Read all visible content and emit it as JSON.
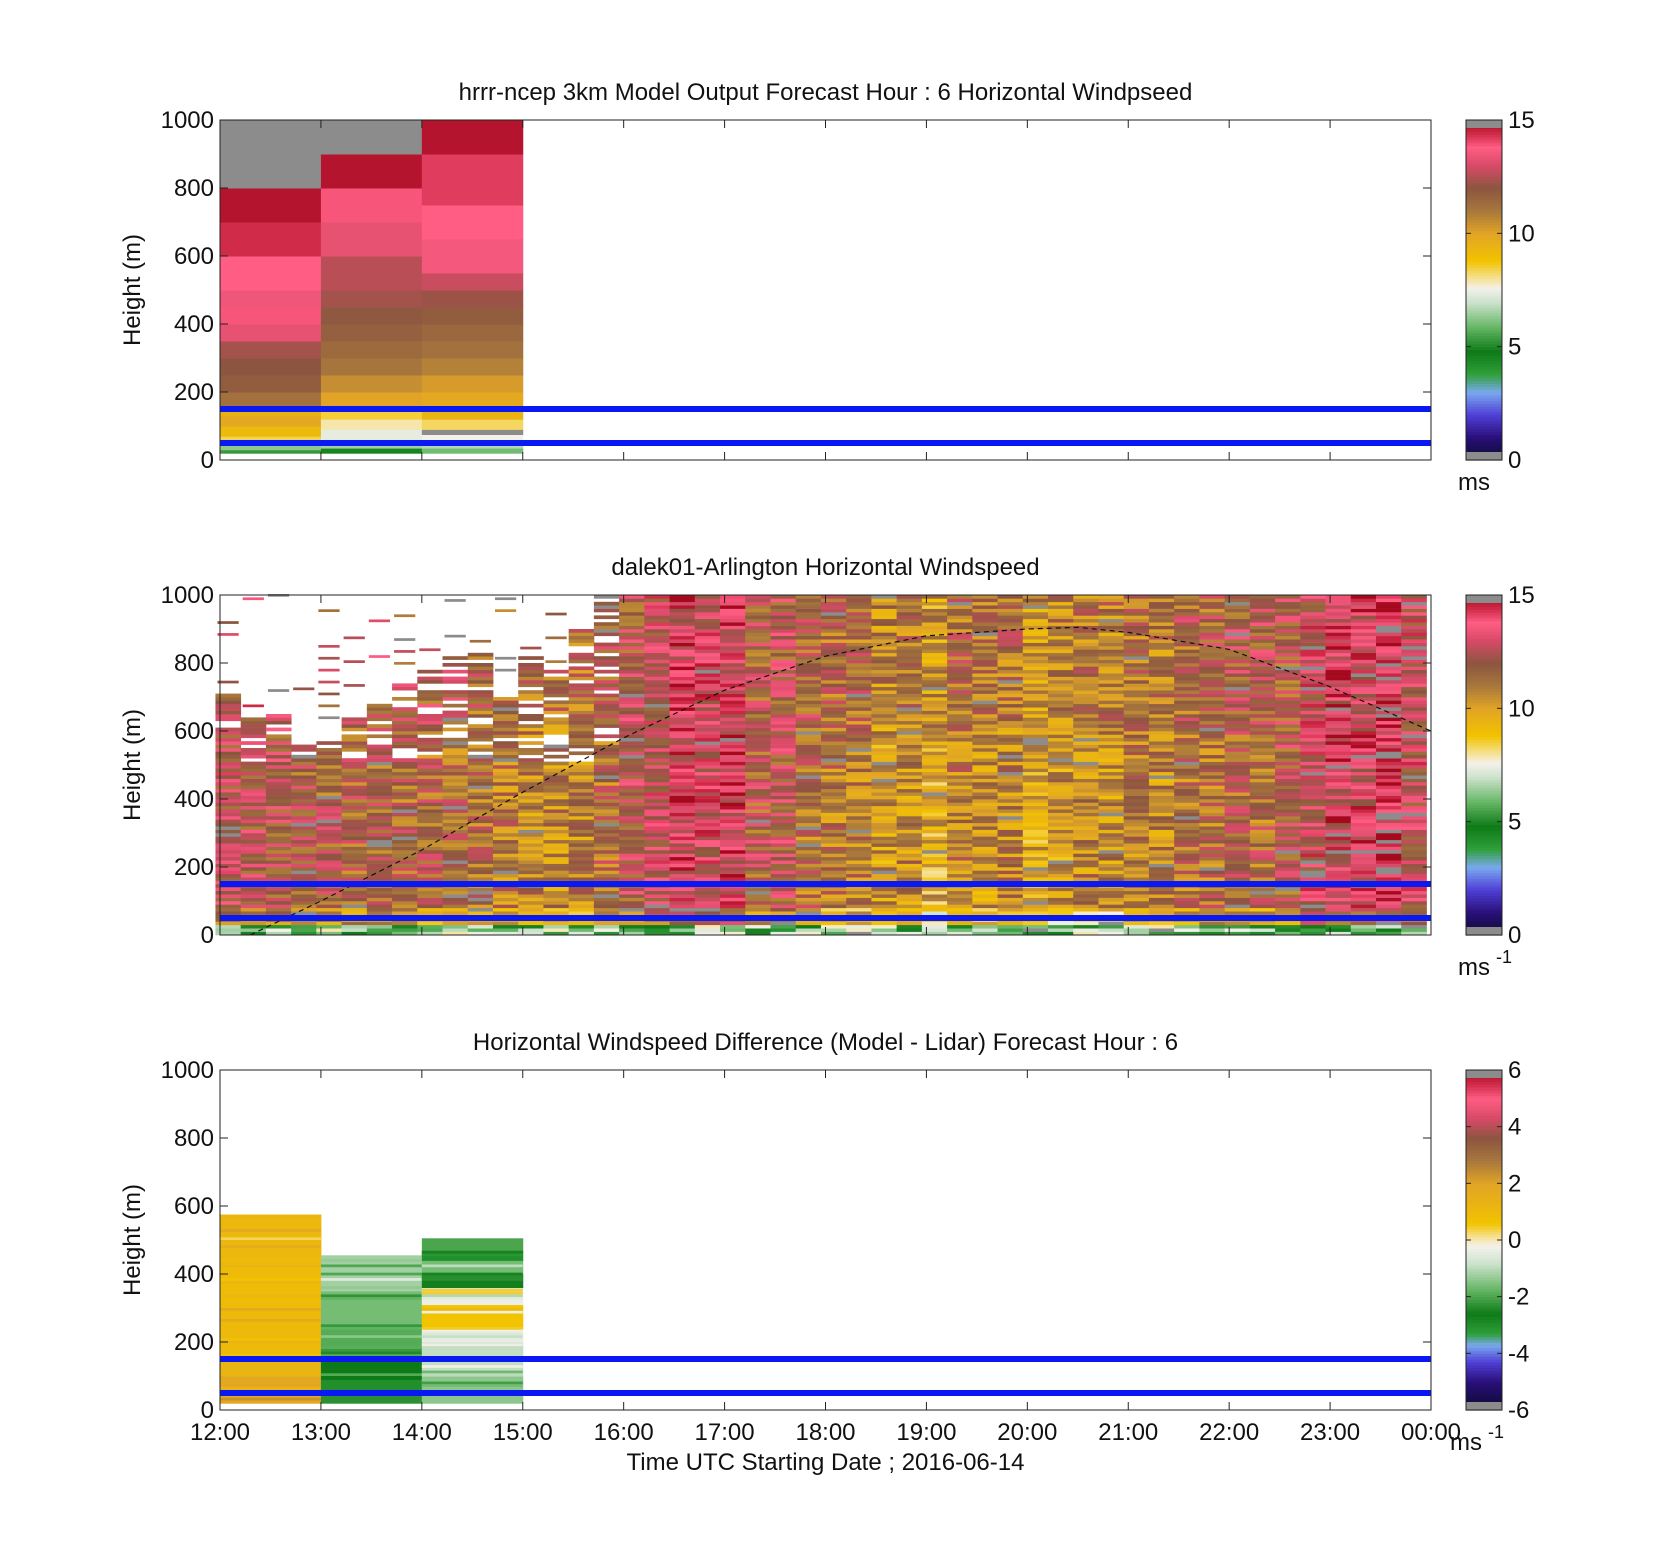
{
  "figure": {
    "x_tick_labels": [
      "12:00",
      "13:00",
      "14:00",
      "15:00",
      "16:00",
      "17:00",
      "18:00",
      "19:00",
      "20:00",
      "21:00",
      "22:00",
      "23:00",
      "00:00"
    ],
    "xlabel": "Time UTC  Starting Date ; 2016-06-14"
  },
  "chart_data": [
    {
      "type": "heatmap",
      "title": "hrrr-ncep 3km Model Output   Forecast Hour : 6 Horizontal Windpseed",
      "xlabel": "",
      "ylabel": "Height (m)",
      "xlim_hours": [
        12,
        24
      ],
      "ylim": [
        0,
        1000
      ],
      "y_ticks": [
        0,
        200,
        400,
        600,
        800,
        1000
      ],
      "colorbar": {
        "ticks": [
          0,
          5,
          10,
          15
        ],
        "label": "ms",
        "label_sup": "",
        "range": [
          0,
          15
        ]
      },
      "reference_lines_m": [
        50,
        150
      ],
      "reference_line_color": "#0a18f2",
      "columns": [
        {
          "start_hour": 12,
          "end_hour": 13,
          "cells": [
            {
              "from": 20,
              "to": 30,
              "v": 5.3
            },
            {
              "from": 30,
              "to": 45,
              "v": 6.3
            },
            {
              "from": 45,
              "to": 70,
              "v": 8.4
            },
            {
              "from": 70,
              "to": 100,
              "v": 9.2
            },
            {
              "from": 100,
              "to": 130,
              "v": 9.8
            },
            {
              "from": 130,
              "to": 150,
              "v": 9.5
            },
            {
              "from": 150,
              "to": 200,
              "v": 11.2
            },
            {
              "from": 200,
              "to": 250,
              "v": 11.8
            },
            {
              "from": 250,
              "to": 300,
              "v": 12.0
            },
            {
              "from": 300,
              "to": 350,
              "v": 12.3
            },
            {
              "from": 350,
              "to": 400,
              "v": 13.3
            },
            {
              "from": 400,
              "to": 450,
              "v": 13.9
            },
            {
              "from": 450,
              "to": 500,
              "v": 13.5
            },
            {
              "from": 500,
              "to": 600,
              "v": 13.8
            },
            {
              "from": 600,
              "to": 700,
              "v": 14.4
            },
            {
              "from": 700,
              "to": 800,
              "v": 14.8
            },
            {
              "from": 800,
              "to": 1000,
              "v": 16.0
            }
          ]
        },
        {
          "start_hour": 13,
          "end_hour": 14,
          "cells": [
            {
              "from": 20,
              "to": 35,
              "v": 4.5
            },
            {
              "from": 35,
              "to": 60,
              "v": 6.5
            },
            {
              "from": 60,
              "to": 90,
              "v": 7.4
            },
            {
              "from": 90,
              "to": 120,
              "v": 7.9
            },
            {
              "from": 120,
              "to": 150,
              "v": 8.5
            },
            {
              "from": 150,
              "to": 200,
              "v": 10.0
            },
            {
              "from": 200,
              "to": 250,
              "v": 10.5
            },
            {
              "from": 250,
              "to": 300,
              "v": 11.1
            },
            {
              "from": 300,
              "to": 350,
              "v": 11.4
            },
            {
              "from": 350,
              "to": 400,
              "v": 11.7
            },
            {
              "from": 400,
              "to": 450,
              "v": 11.9
            },
            {
              "from": 450,
              "to": 500,
              "v": 12.3
            },
            {
              "from": 500,
              "to": 600,
              "v": 12.6
            },
            {
              "from": 600,
              "to": 700,
              "v": 13.3
            },
            {
              "from": 700,
              "to": 800,
              "v": 13.9
            },
            {
              "from": 800,
              "to": 900,
              "v": 14.8
            },
            {
              "from": 900,
              "to": 1000,
              "v": 16.0
            }
          ]
        },
        {
          "start_hour": 14,
          "end_hour": 15,
          "cells": [
            {
              "from": 20,
              "to": 35,
              "v": 6.0
            },
            {
              "from": 35,
              "to": 60,
              "v": 6.7
            },
            {
              "from": 60,
              "to": 75,
              "v": 7.6
            },
            {
              "from": 75,
              "to": 90,
              "v": 16.0
            },
            {
              "from": 90,
              "to": 120,
              "v": 8.3
            },
            {
              "from": 120,
              "to": 150,
              "v": 9.4
            },
            {
              "from": 150,
              "to": 200,
              "v": 9.8
            },
            {
              "from": 200,
              "to": 250,
              "v": 10.2
            },
            {
              "from": 250,
              "to": 300,
              "v": 10.8
            },
            {
              "from": 300,
              "to": 350,
              "v": 11.2
            },
            {
              "from": 350,
              "to": 400,
              "v": 11.5
            },
            {
              "from": 400,
              "to": 450,
              "v": 11.8
            },
            {
              "from": 450,
              "to": 500,
              "v": 12.2
            },
            {
              "from": 500,
              "to": 550,
              "v": 12.8
            },
            {
              "from": 550,
              "to": 650,
              "v": 13.6
            },
            {
              "from": 650,
              "to": 750,
              "v": 13.8
            },
            {
              "from": 750,
              "to": 900,
              "v": 14.2
            },
            {
              "from": 900,
              "to": 1000,
              "v": 14.8
            }
          ]
        }
      ]
    },
    {
      "type": "heatmap",
      "title": "dalek01-Arlington  Horizontal Windspeed",
      "xlabel": "",
      "ylabel": "Height (m)",
      "xlim_hours": [
        12,
        24
      ],
      "ylim": [
        0,
        1000
      ],
      "y_ticks": [
        0,
        200,
        400,
        600,
        800,
        1000
      ],
      "colorbar": {
        "ticks": [
          0,
          5,
          10,
          15
        ],
        "label": "ms",
        "label_sup": "-1",
        "range": [
          0,
          15
        ]
      },
      "reference_lines_m": [
        50,
        150
      ],
      "reference_line_color": "#0a18f2",
      "boundary_layer_curve": {
        "style": "dashed",
        "points_hour_m": [
          [
            12.3,
            0
          ],
          [
            13,
            100
          ],
          [
            14,
            250
          ],
          [
            15,
            420
          ],
          [
            16,
            580
          ],
          [
            17,
            720
          ],
          [
            18,
            820
          ],
          [
            19,
            880
          ],
          [
            20,
            900
          ],
          [
            20.5,
            905
          ],
          [
            21,
            890
          ],
          [
            22,
            840
          ],
          [
            23,
            730
          ],
          [
            24,
            600
          ]
        ]
      },
      "profile_columns": [
        {
          "hour": 12.08,
          "top_m": 720,
          "mean_ms": 12.6
        },
        {
          "hour": 12.33,
          "top_m": 650,
          "mean_ms": 12.4
        },
        {
          "hour": 12.58,
          "top_m": 660,
          "mean_ms": 12.3
        },
        {
          "hour": 12.83,
          "top_m": 560,
          "mean_ms": 12.0
        },
        {
          "hour": 13.08,
          "top_m": 580,
          "mean_ms": 11.9
        },
        {
          "hour": 13.33,
          "top_m": 640,
          "mean_ms": 11.8
        },
        {
          "hour": 13.58,
          "top_m": 690,
          "mean_ms": 11.8
        },
        {
          "hour": 13.83,
          "top_m": 740,
          "mean_ms": 11.7
        },
        {
          "hour": 14.08,
          "top_m": 780,
          "mean_ms": 11.6
        },
        {
          "hour": 14.33,
          "top_m": 820,
          "mean_ms": 11.4
        },
        {
          "hour": 14.58,
          "top_m": 840,
          "mean_ms": 11.2
        },
        {
          "hour": 14.83,
          "top_m": 720,
          "mean_ms": 11.0
        },
        {
          "hour": 15.08,
          "top_m": 820,
          "mean_ms": 10.8
        },
        {
          "hour": 15.33,
          "top_m": 780,
          "mean_ms": 10.7
        },
        {
          "hour": 15.58,
          "top_m": 900,
          "mean_ms": 10.7
        },
        {
          "hour": 15.83,
          "top_m": 1000,
          "mean_ms": 11.5
        },
        {
          "hour": 16.08,
          "top_m": 1000,
          "mean_ms": 12.2
        },
        {
          "hour": 16.33,
          "top_m": 1000,
          "mean_ms": 12.8
        },
        {
          "hour": 16.58,
          "top_m": 1000,
          "mean_ms": 13.6
        },
        {
          "hour": 16.83,
          "top_m": 1000,
          "mean_ms": 13.2
        },
        {
          "hour": 17.08,
          "top_m": 1000,
          "mean_ms": 13.7
        },
        {
          "hour": 17.33,
          "top_m": 1000,
          "mean_ms": 12.0
        },
        {
          "hour": 17.58,
          "top_m": 1000,
          "mean_ms": 12.3
        },
        {
          "hour": 17.83,
          "top_m": 1000,
          "mean_ms": 11.4
        },
        {
          "hour": 18.08,
          "top_m": 1000,
          "mean_ms": 11.0
        },
        {
          "hour": 18.33,
          "top_m": 1000,
          "mean_ms": 11.0
        },
        {
          "hour": 18.58,
          "top_m": 1000,
          "mean_ms": 10.2
        },
        {
          "hour": 18.83,
          "top_m": 1000,
          "mean_ms": 10.6
        },
        {
          "hour": 19.08,
          "top_m": 1000,
          "mean_ms": 9.6
        },
        {
          "hour": 19.33,
          "top_m": 1000,
          "mean_ms": 11.0
        },
        {
          "hour": 19.58,
          "top_m": 1000,
          "mean_ms": 10.4
        },
        {
          "hour": 19.83,
          "top_m": 1000,
          "mean_ms": 10.8
        },
        {
          "hour": 20.08,
          "top_m": 1000,
          "mean_ms": 9.8
        },
        {
          "hour": 20.33,
          "top_m": 1000,
          "mean_ms": 10.2
        },
        {
          "hour": 20.58,
          "top_m": 1000,
          "mean_ms": 10.7
        },
        {
          "hour": 20.83,
          "top_m": 1000,
          "mean_ms": 10.5
        },
        {
          "hour": 21.08,
          "top_m": 1000,
          "mean_ms": 10.9
        },
        {
          "hour": 21.33,
          "top_m": 1000,
          "mean_ms": 10.6
        },
        {
          "hour": 21.58,
          "top_m": 1000,
          "mean_ms": 11.2
        },
        {
          "hour": 21.83,
          "top_m": 1000,
          "mean_ms": 11.3
        },
        {
          "hour": 22.08,
          "top_m": 1000,
          "mean_ms": 11.6
        },
        {
          "hour": 22.33,
          "top_m": 1000,
          "mean_ms": 11.6
        },
        {
          "hour": 22.58,
          "top_m": 1000,
          "mean_ms": 12.0
        },
        {
          "hour": 22.83,
          "top_m": 1000,
          "mean_ms": 13.0
        },
        {
          "hour": 23.08,
          "top_m": 1000,
          "mean_ms": 13.6
        },
        {
          "hour": 23.33,
          "top_m": 1000,
          "mean_ms": 13.5
        },
        {
          "hour": 23.58,
          "top_m": 1000,
          "mean_ms": 14.2
        },
        {
          "hour": 23.83,
          "top_m": 1000,
          "mean_ms": 12.9
        }
      ]
    },
    {
      "type": "heatmap",
      "title": "Horizontal Windspeed Difference (Model - Lidar) Forecast Hour : 6",
      "xlabel": "Time UTC  Starting Date ; 2016-06-14",
      "ylabel": "Height (m)",
      "xlim_hours": [
        12,
        24
      ],
      "ylim": [
        0,
        1000
      ],
      "y_ticks": [
        0,
        200,
        400,
        600,
        800,
        1000
      ],
      "colorbar": {
        "ticks": [
          -6,
          -4,
          -2,
          0,
          2,
          4,
          6
        ],
        "label": "ms",
        "label_sup": "-1",
        "range": [
          -6,
          6
        ]
      },
      "reference_lines_m": [
        50,
        150
      ],
      "reference_line_color": "#0a18f2",
      "columns": [
        {
          "start_hour": 12,
          "end_hour": 13,
          "cells": [
            {
              "from": 20,
              "to": 100,
              "v": 1.8
            },
            {
              "from": 100,
              "to": 150,
              "v": 1.3
            },
            {
              "from": 150,
              "to": 300,
              "v": 1.0
            },
            {
              "from": 300,
              "to": 450,
              "v": 0.9
            },
            {
              "from": 450,
              "to": 575,
              "v": 1.1
            }
          ]
        },
        {
          "start_hour": 13,
          "end_hour": 14,
          "cells": [
            {
              "from": 20,
              "to": 60,
              "v": -2.3
            },
            {
              "from": 60,
              "to": 90,
              "v": -3.0
            },
            {
              "from": 90,
              "to": 150,
              "v": -2.6
            },
            {
              "from": 150,
              "to": 250,
              "v": -1.9
            },
            {
              "from": 250,
              "to": 350,
              "v": -1.6
            },
            {
              "from": 350,
              "to": 455,
              "v": -1.2
            }
          ]
        },
        {
          "start_hour": 14,
          "end_hour": 15,
          "cells": [
            {
              "from": 20,
              "to": 100,
              "v": -1.4
            },
            {
              "from": 100,
              "to": 200,
              "v": -0.9
            },
            {
              "from": 200,
              "to": 240,
              "v": -0.3
            },
            {
              "from": 240,
              "to": 310,
              "v": 0.6
            },
            {
              "from": 310,
              "to": 360,
              "v": -0.3
            },
            {
              "from": 360,
              "to": 400,
              "v": -2.7
            },
            {
              "from": 400,
              "to": 440,
              "v": -1.6
            },
            {
              "from": 440,
              "to": 470,
              "v": -3.0
            },
            {
              "from": 470,
              "to": 505,
              "v": -2.0
            }
          ]
        }
      ]
    }
  ]
}
